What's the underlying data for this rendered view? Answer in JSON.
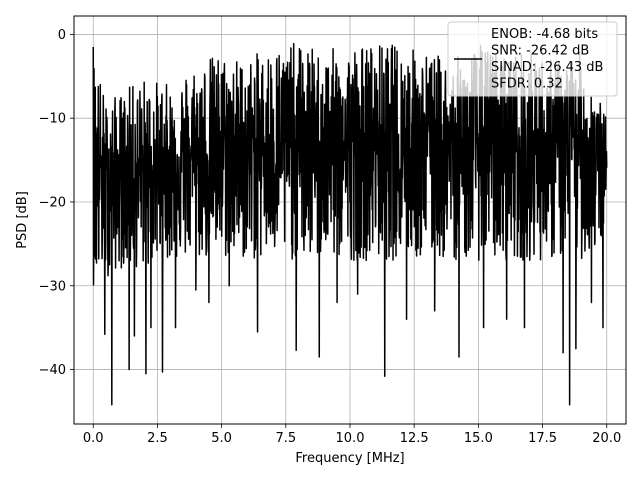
{
  "chart_data": {
    "type": "line",
    "title": "",
    "xlabel": "Frequency [MHz]",
    "ylabel": "PSD [dB]",
    "xlim": [
      -0.75,
      20.75
    ],
    "ylim": [
      -46.5,
      2.2
    ],
    "xticks": [
      0.0,
      2.5,
      5.0,
      7.5,
      10.0,
      12.5,
      15.0,
      17.5,
      20.0
    ],
    "xtick_labels": [
      "0.0",
      "2.5",
      "5.0",
      "7.5",
      "10.0",
      "12.5",
      "15.0",
      "17.5",
      "20.0"
    ],
    "yticks": [
      0,
      -10,
      -20,
      -30,
      -40
    ],
    "ytick_labels": [
      "0",
      "−10",
      "−20",
      "−30",
      "−40"
    ],
    "grid": true,
    "legend_position": "top-right",
    "legend_lines": [
      "ENOB: -4.68 bits",
      "SNR: -26.42 dB",
      "SINAD: -26.43 dB",
      "SFDR: 0.32"
    ],
    "series": [
      {
        "color": "#000000",
        "x_range": [
          0.0,
          20.0
        ],
        "num_points": 2048,
        "description": "noisy PSD trace, dense oscillation",
        "envelope": {
          "x": [
            0.0,
            0.5,
            1.0,
            2.0,
            3.0,
            4.0,
            5.0,
            6.0,
            7.0,
            8.0,
            9.0,
            10.0,
            11.0,
            12.0,
            13.0,
            14.0,
            15.0,
            16.0,
            17.0,
            18.0,
            19.0,
            20.0
          ],
          "upper_peak": [
            -1.5,
            -8.0,
            -7.0,
            -5.0,
            -6.0,
            -3.0,
            -2.0,
            -3.0,
            -1.0,
            -1.0,
            -2.0,
            -1.0,
            -1.0,
            -1.0,
            -2.0,
            -3.0,
            -1.0,
            -2.0,
            -2.0,
            -3.0,
            -2.0,
            -10.0
          ],
          "mean": [
            -14,
            -17,
            -17,
            -16,
            -15,
            -14,
            -14,
            -13,
            -13,
            -13,
            -13,
            -13,
            -13,
            -13,
            -13,
            -13,
            -13,
            -13,
            -13,
            -13,
            -13,
            -14
          ],
          "lower_base": [
            -30,
            -29,
            -28,
            -28,
            -27,
            -27,
            -27,
            -27,
            -27,
            -27,
            -27,
            -27,
            -27,
            -27,
            -27,
            -27,
            -27,
            -27,
            -27,
            -27,
            -27,
            -25
          ]
        },
        "dips": [
          [
            0.45,
            -35.8
          ],
          [
            0.72,
            -44.2
          ],
          [
            1.4,
            -40.0
          ],
          [
            1.6,
            -36.0
          ],
          [
            2.05,
            -40.5
          ],
          [
            2.25,
            -35.0
          ],
          [
            2.7,
            -40.3
          ],
          [
            3.2,
            -35.0
          ],
          [
            4.0,
            -30.5
          ],
          [
            4.5,
            -32.0
          ],
          [
            5.3,
            -30.0
          ],
          [
            6.4,
            -35.5
          ],
          [
            7.9,
            -37.7
          ],
          [
            8.8,
            -38.5
          ],
          [
            9.5,
            -32.0
          ],
          [
            10.3,
            -31.0
          ],
          [
            11.35,
            -40.8
          ],
          [
            12.2,
            -34.0
          ],
          [
            13.3,
            -33.0
          ],
          [
            14.25,
            -38.5
          ],
          [
            15.2,
            -35.0
          ],
          [
            16.1,
            -34.0
          ],
          [
            16.8,
            -35.0
          ],
          [
            18.3,
            -38.0
          ],
          [
            18.55,
            -44.2
          ],
          [
            18.8,
            -37.5
          ],
          [
            19.4,
            -32.0
          ],
          [
            19.85,
            -35.0
          ]
        ]
      }
    ]
  }
}
